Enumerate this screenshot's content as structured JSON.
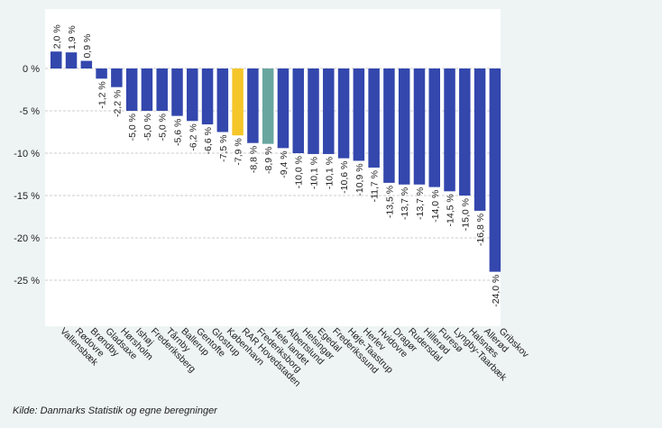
{
  "chart_data": {
    "type": "bar",
    "categories": [
      "Vallensbæk",
      "Rødovre",
      "Brøndby",
      "Gladsaxe",
      "Hørsholm",
      "Ishøj",
      "Frederiksberg",
      "Tårnby",
      "Ballerup",
      "Gentofte",
      "Glostrup",
      "København",
      "RAR Hovedstaden",
      "Frederiksborg",
      "Hele landet",
      "Albertslund",
      "Helsingør",
      "Egedal",
      "Frederikssund",
      "Høje-Taastrup",
      "Herlev",
      "Hvidovre",
      "Dragør",
      "Rudersdal",
      "Hillerød",
      "Furesø",
      "Lyngby-Taarbæk",
      "Halsnæs",
      "Allerød",
      "Gribskov"
    ],
    "values": [
      2.0,
      1.9,
      0.9,
      -1.2,
      -2.2,
      -5.0,
      -5.0,
      -5.0,
      -5.6,
      -6.2,
      -6.6,
      -7.5,
      -7.9,
      -8.8,
      -8.9,
      -9.4,
      -10.0,
      -10.1,
      -10.1,
      -10.6,
      -10.9,
      -11.7,
      -13.5,
      -13.7,
      -13.7,
      -14.0,
      -14.5,
      -15.0,
      -16.8,
      -24.0
    ],
    "value_labels": [
      "2,0 %",
      "1,9 %",
      "0,9 %",
      "-1,2 %",
      "-2,2 %",
      "-5,0 %",
      "-5,0 %",
      "-5,0 %",
      "-5,6 %",
      "-6,2 %",
      "-6,6 %",
      "-7,5 %",
      "-7,9 %",
      "-8,8 %",
      "-8,9 %",
      "-9,4 %",
      "-10,0 %",
      "-10,1 %",
      "-10,1 %",
      "-10,6 %",
      "-10,9 %",
      "-11,7 %",
      "-13,5 %",
      "-13,7 %",
      "-13,7 %",
      "-14,0 %",
      "-14,5 %",
      "-15,0 %",
      "-16,8 %",
      "-24,0 %"
    ],
    "ylim": [
      -30,
      2.5
    ],
    "yticks": [
      0,
      -5,
      -10,
      -15,
      -20,
      -25
    ],
    "ytick_labels": [
      "0 %",
      "-5 %",
      "-10 %",
      "-15 %",
      "-20 %",
      "-25 %"
    ],
    "grid": true,
    "colors": {
      "default": "#3347ad",
      "highlight_region": "#f5c62a",
      "highlight_country": "#6aa6a0",
      "grid": "#cccccc",
      "text": "#222222"
    },
    "highlight": {
      "RAR Hovedstaden": "highlight_region",
      "Hele landet": "highlight_country"
    }
  },
  "source_note": "Kilde: Danmarks Statistik og  egne beregninger"
}
